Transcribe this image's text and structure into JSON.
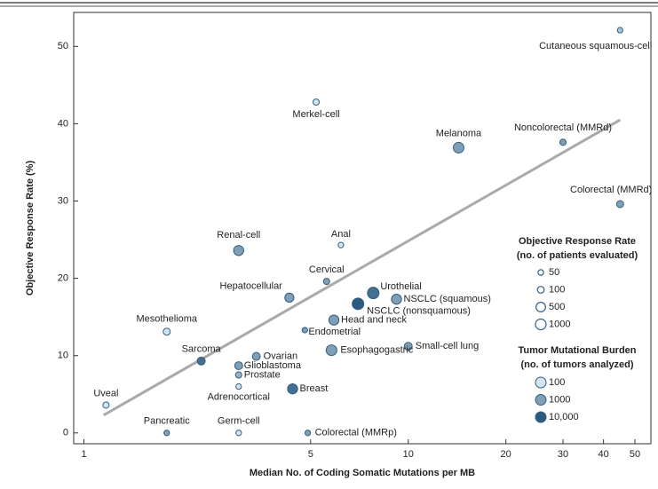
{
  "chart_data": {
    "type": "scatter",
    "xlabel": "Median No. of Coding Somatic Mutations per MB",
    "ylabel": "Objective Response Rate (%)",
    "xscale": "log",
    "xlim": [
      0.93,
      56
    ],
    "xticks": [
      1,
      5,
      10,
      20,
      30,
      40,
      50
    ],
    "ylim": [
      -1.4,
      54.4
    ],
    "yticks": [
      0,
      10,
      20,
      30,
      40,
      50
    ],
    "colors": {
      "low": "#d3e4ef",
      "high": "#2b5a7e",
      "stroke": "#2f5f80",
      "trend": "#a9a9a9"
    },
    "trend_line": {
      "x": [
        1.15,
        45
      ],
      "y": [
        2.3,
        40.5
      ]
    },
    "points": [
      {
        "name": "Cutaneous squamous-cell",
        "x": 45,
        "y": 52.1,
        "patients": 50,
        "tmb": 300
      },
      {
        "name": "Merkel-cell",
        "x": 5.2,
        "y": 42.8,
        "patients": 75,
        "tmb": 100
      },
      {
        "name": "Melanoma",
        "x": 14.3,
        "y": 36.9,
        "patients": 1000,
        "tmb": 1000
      },
      {
        "name": "Noncolorectal (MMRd)",
        "x": 30,
        "y": 37.6,
        "patients": 75,
        "tmb": 1000
      },
      {
        "name": "Colorectal (MMRd)",
        "x": 45,
        "y": 29.6,
        "patients": 120,
        "tmb": 1000
      },
      {
        "name": "Renal-cell",
        "x": 3,
        "y": 23.6,
        "patients": 700,
        "tmb": 1000
      },
      {
        "name": "Anal",
        "x": 6.2,
        "y": 24.3,
        "patients": 50,
        "tmb": 100
      },
      {
        "name": "Cervical",
        "x": 5.6,
        "y": 19.6,
        "patients": 75,
        "tmb": 1000
      },
      {
        "name": "Hepatocellular",
        "x": 4.3,
        "y": 17.5,
        "patients": 400,
        "tmb": 1000
      },
      {
        "name": "Urothelial",
        "x": 7.8,
        "y": 18.1,
        "patients": 1700,
        "tmb": 5000
      },
      {
        "name": "NSCLC (nonsquamous)",
        "x": 7,
        "y": 16.7,
        "patients": 1700,
        "tmb": 10000
      },
      {
        "name": "NSCLC (squamous)",
        "x": 9.2,
        "y": 17.3,
        "patients": 700,
        "tmb": 1000
      },
      {
        "name": "Head and neck",
        "x": 5.9,
        "y": 14.6,
        "patients": 700,
        "tmb": 1000
      },
      {
        "name": "Endometrial",
        "x": 4.8,
        "y": 13.3,
        "patients": 50,
        "tmb": 1000
      },
      {
        "name": "Mesothelioma",
        "x": 1.8,
        "y": 13.1,
        "patients": 120,
        "tmb": 100
      },
      {
        "name": "Small-cell lung",
        "x": 10,
        "y": 11.2,
        "patients": 200,
        "tmb": 1000
      },
      {
        "name": "Esophagogastric",
        "x": 5.8,
        "y": 10.7,
        "patients": 1000,
        "tmb": 1000
      },
      {
        "name": "Ovarian",
        "x": 3.4,
        "y": 9.9,
        "patients": 200,
        "tmb": 1000
      },
      {
        "name": "Sarcoma",
        "x": 2.3,
        "y": 9.3,
        "patients": 200,
        "tmb": 5000
      },
      {
        "name": "Glioblastoma",
        "x": 3,
        "y": 8.7,
        "patients": 200,
        "tmb": 1000
      },
      {
        "name": "Prostate",
        "x": 3,
        "y": 7.5,
        "patients": 75,
        "tmb": 500
      },
      {
        "name": "Adrenocortical",
        "x": 3,
        "y": 6.0,
        "patients": 50,
        "tmb": 100
      },
      {
        "name": "Breast",
        "x": 4.4,
        "y": 5.7,
        "patients": 700,
        "tmb": 5000
      },
      {
        "name": "Uveal",
        "x": 1.17,
        "y": 3.6,
        "patients": 75,
        "tmb": 100
      },
      {
        "name": "Pancreatic",
        "x": 1.8,
        "y": 0,
        "patients": 50,
        "tmb": 1000
      },
      {
        "name": "Germ-cell",
        "x": 3,
        "y": 0,
        "patients": 50,
        "tmb": 100
      },
      {
        "name": "Colorectal (MMRp)",
        "x": 4.9,
        "y": 0,
        "patients": 50,
        "tmb": 1000
      }
    ],
    "size_legend": {
      "title": [
        "Objective Response Rate",
        "(no. of patients evaluated)"
      ],
      "values": [
        50,
        100,
        500,
        1000
      ]
    },
    "color_legend": {
      "title": [
        "Tumor Mutational Burden",
        "(no. of tumors analyzed)"
      ],
      "values": [
        100,
        1000,
        {
          "value": 10000,
          "label": "10,000"
        }
      ]
    }
  }
}
